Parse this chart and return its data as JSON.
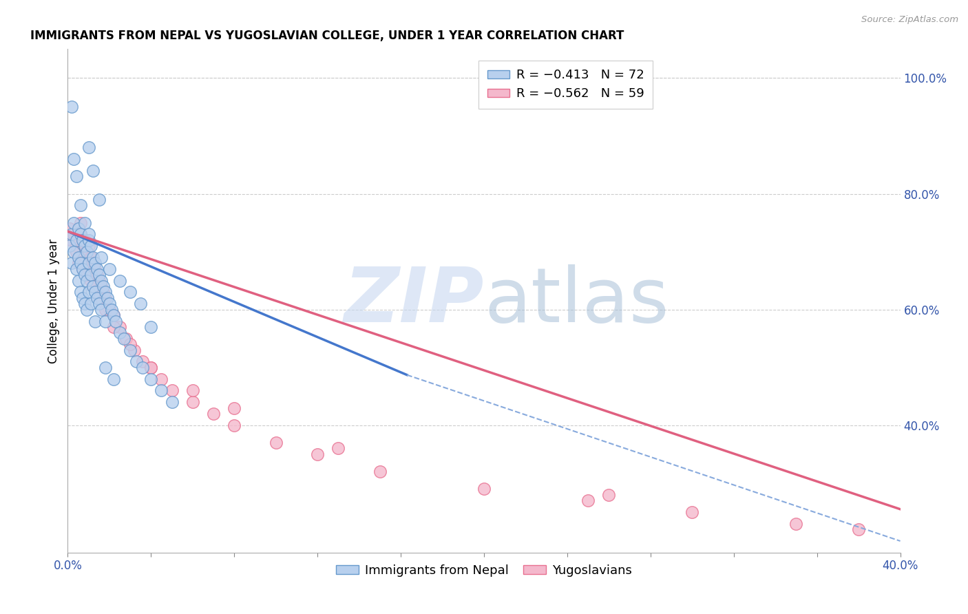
{
  "title": "IMMIGRANTS FROM NEPAL VS YUGOSLAVIAN COLLEGE, UNDER 1 YEAR CORRELATION CHART",
  "source": "Source: ZipAtlas.com",
  "ylabel": "College, Under 1 year",
  "right_yticks": [
    0.4,
    0.6,
    0.8,
    1.0
  ],
  "right_yticklabels": [
    "40.0%",
    "60.0%",
    "80.0%",
    "100.0%"
  ],
  "nepal_color": "#b8d0ee",
  "nepal_edge": "#6699cc",
  "yugo_color": "#f4b8cc",
  "yugo_edge": "#e87090",
  "trend_nepal_color": "#4477cc",
  "trend_yugo_color": "#e06080",
  "trend_dash_color": "#88aadd",
  "xlim": [
    0.0,
    0.4
  ],
  "ylim": [
    0.18,
    1.05
  ],
  "nepal_x": [
    0.001,
    0.002,
    0.002,
    0.003,
    0.003,
    0.004,
    0.004,
    0.005,
    0.005,
    0.005,
    0.006,
    0.006,
    0.006,
    0.007,
    0.007,
    0.007,
    0.008,
    0.008,
    0.008,
    0.009,
    0.009,
    0.009,
    0.01,
    0.01,
    0.01,
    0.011,
    0.011,
    0.011,
    0.012,
    0.012,
    0.013,
    0.013,
    0.013,
    0.014,
    0.014,
    0.015,
    0.015,
    0.016,
    0.016,
    0.017,
    0.018,
    0.018,
    0.019,
    0.02,
    0.021,
    0.022,
    0.023,
    0.025,
    0.027,
    0.03,
    0.033,
    0.036,
    0.04,
    0.045,
    0.05,
    0.002,
    0.01,
    0.012,
    0.015,
    0.003,
    0.004,
    0.006,
    0.008,
    0.01,
    0.016,
    0.02,
    0.025,
    0.03,
    0.035,
    0.04,
    0.018,
    0.022
  ],
  "nepal_y": [
    0.71,
    0.73,
    0.68,
    0.75,
    0.7,
    0.72,
    0.67,
    0.74,
    0.69,
    0.65,
    0.73,
    0.68,
    0.63,
    0.72,
    0.67,
    0.62,
    0.71,
    0.66,
    0.61,
    0.7,
    0.65,
    0.6,
    0.72,
    0.68,
    0.63,
    0.71,
    0.66,
    0.61,
    0.69,
    0.64,
    0.68,
    0.63,
    0.58,
    0.67,
    0.62,
    0.66,
    0.61,
    0.65,
    0.6,
    0.64,
    0.63,
    0.58,
    0.62,
    0.61,
    0.6,
    0.59,
    0.58,
    0.56,
    0.55,
    0.53,
    0.51,
    0.5,
    0.48,
    0.46,
    0.44,
    0.95,
    0.88,
    0.84,
    0.79,
    0.86,
    0.83,
    0.78,
    0.75,
    0.73,
    0.69,
    0.67,
    0.65,
    0.63,
    0.61,
    0.57,
    0.5,
    0.48
  ],
  "yugo_x": [
    0.001,
    0.002,
    0.003,
    0.004,
    0.005,
    0.005,
    0.006,
    0.006,
    0.007,
    0.007,
    0.008,
    0.008,
    0.009,
    0.009,
    0.01,
    0.01,
    0.011,
    0.011,
    0.012,
    0.013,
    0.014,
    0.015,
    0.016,
    0.017,
    0.018,
    0.02,
    0.022,
    0.025,
    0.028,
    0.032,
    0.036,
    0.04,
    0.045,
    0.05,
    0.06,
    0.07,
    0.08,
    0.1,
    0.12,
    0.15,
    0.2,
    0.25,
    0.3,
    0.35,
    0.38,
    0.004,
    0.006,
    0.008,
    0.01,
    0.012,
    0.015,
    0.018,
    0.022,
    0.03,
    0.04,
    0.06,
    0.08,
    0.13,
    0.26
  ],
  "yugo_y": [
    0.74,
    0.72,
    0.73,
    0.71,
    0.72,
    0.68,
    0.73,
    0.69,
    0.71,
    0.67,
    0.72,
    0.68,
    0.7,
    0.66,
    0.71,
    0.67,
    0.69,
    0.65,
    0.68,
    0.67,
    0.66,
    0.65,
    0.64,
    0.63,
    0.62,
    0.6,
    0.59,
    0.57,
    0.55,
    0.53,
    0.51,
    0.5,
    0.48,
    0.46,
    0.44,
    0.42,
    0.4,
    0.37,
    0.35,
    0.32,
    0.29,
    0.27,
    0.25,
    0.23,
    0.22,
    0.7,
    0.75,
    0.68,
    0.66,
    0.64,
    0.62,
    0.6,
    0.57,
    0.54,
    0.5,
    0.46,
    0.43,
    0.36,
    0.28
  ],
  "nepal_trend_x": [
    0.0,
    0.163
  ],
  "nepal_trend_y": [
    0.735,
    0.487
  ],
  "yugo_trend_x": [
    0.0,
    0.4
  ],
  "yugo_trend_y": [
    0.735,
    0.255
  ],
  "dash_trend_x": [
    0.163,
    0.4
  ],
  "dash_trend_y": [
    0.487,
    0.2
  ]
}
